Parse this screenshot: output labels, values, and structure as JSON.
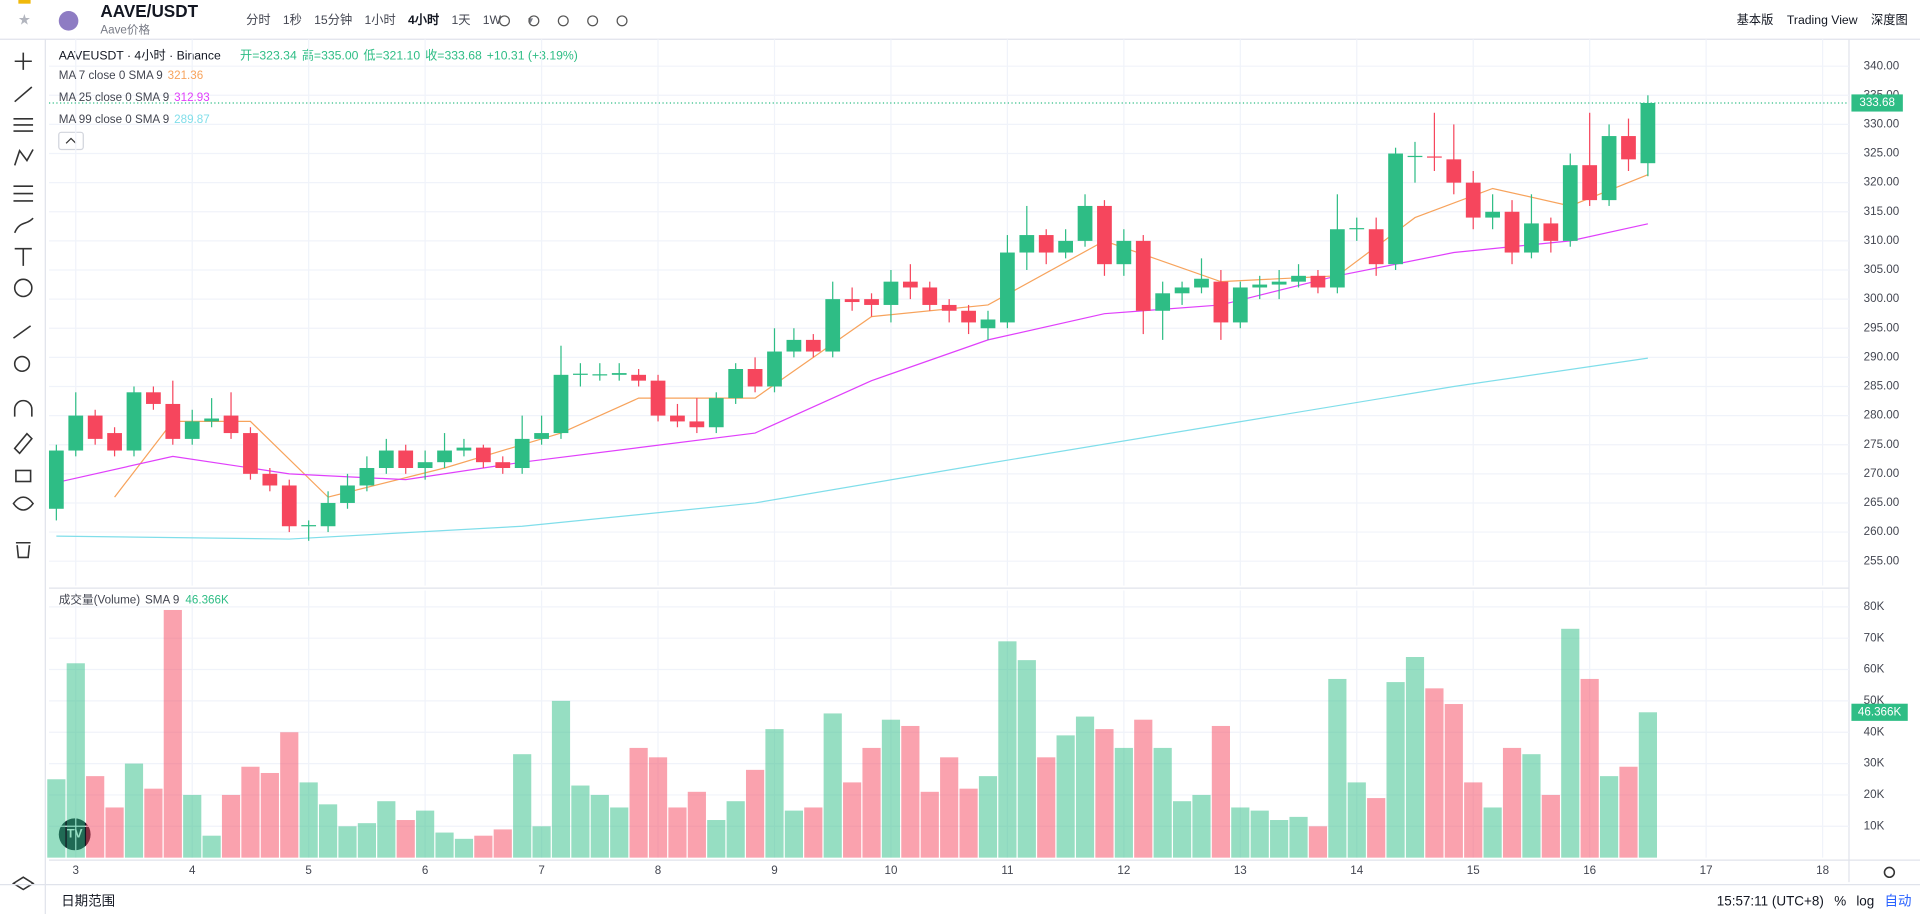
{
  "toolbar": {
    "symbol": "AAVE/USDT",
    "subtitle": "Aave价格",
    "intervals": [
      "分时",
      "1秒",
      "15分钟",
      "1小时",
      "4小时",
      "1天",
      "1W"
    ],
    "active_interval": 4,
    "views": [
      "基本版",
      "Trading View",
      "深度图"
    ]
  },
  "footer": {
    "range": "日期范围",
    "time": "15:57:11 (UTC+8)",
    "options": [
      "%",
      "log",
      "自动"
    ]
  },
  "chart_data": {
    "type": "candlestick",
    "legend": {
      "name": "AAVEUSDT · 4小时 · Binance",
      "ohlc": [
        "开=323.34",
        "高=335.00",
        "低=321.10",
        "收=333.68",
        "+10.31 (+3.19%)"
      ]
    },
    "up_color": "#2ebd85",
    "down_color": "#f6465d",
    "xlim": [
      -0.38,
      92.36
    ],
    "xticks": [
      {
        "value": 1,
        "label": "3"
      },
      {
        "value": 7,
        "label": "4"
      },
      {
        "value": 13,
        "label": "5"
      },
      {
        "value": 19,
        "label": "6"
      },
      {
        "value": 25,
        "label": "7"
      },
      {
        "value": 31,
        "label": "8"
      },
      {
        "value": 37,
        "label": "9"
      },
      {
        "value": 43,
        "label": "10"
      },
      {
        "value": 49,
        "label": "11"
      },
      {
        "value": 55,
        "label": "12"
      },
      {
        "value": 61,
        "label": "13"
      },
      {
        "value": 67,
        "label": "14"
      },
      {
        "value": 73,
        "label": "15"
      },
      {
        "value": 79,
        "label": "16"
      },
      {
        "value": 85,
        "label": "17"
      },
      {
        "value": 91,
        "label": "18"
      }
    ],
    "ylim": [
      250.8,
      344
    ],
    "yticks": [
      {
        "value": 255,
        "label": "255.00"
      },
      {
        "value": 260,
        "label": "260.00"
      },
      {
        "value": 265,
        "label": "265.00"
      },
      {
        "value": 270,
        "label": "270.00"
      },
      {
        "value": 275,
        "label": "275.00"
      },
      {
        "value": 280,
        "label": "280.00"
      },
      {
        "value": 285,
        "label": "285.00"
      },
      {
        "value": 290,
        "label": "290.00"
      },
      {
        "value": 295,
        "label": "295.00"
      },
      {
        "value": 300,
        "label": "300.00"
      },
      {
        "value": 305,
        "label": "305.00"
      },
      {
        "value": 310,
        "label": "310.00"
      },
      {
        "value": 315,
        "label": "315.00"
      },
      {
        "value": 320,
        "label": "320.00"
      },
      {
        "value": 325,
        "label": "325.00"
      },
      {
        "value": 330,
        "label": "330.00"
      },
      {
        "value": 335,
        "label": "335.00"
      },
      {
        "value": 340,
        "label": "340.00"
      }
    ],
    "grid": true,
    "open": [
      264,
      274,
      280,
      277,
      274,
      284,
      282,
      276,
      279,
      280,
      277,
      270,
      268,
      261,
      261,
      265,
      268,
      271,
      274,
      271,
      272,
      274,
      274.5,
      272,
      271,
      276,
      277,
      287,
      287,
      287,
      287,
      286,
      280,
      279,
      278,
      283,
      288,
      285,
      291,
      293,
      291,
      300,
      300,
      299,
      303,
      302,
      299,
      298,
      295,
      296,
      308,
      311,
      308,
      310,
      316,
      306,
      310,
      298,
      301,
      302,
      303,
      296,
      302,
      302.5,
      303,
      304,
      302,
      312,
      312,
      306,
      324.5,
      324.5,
      324,
      320,
      314,
      315,
      308,
      313,
      310,
      323,
      317,
      328,
      323.34
    ],
    "high": [
      275,
      284,
      281,
      278,
      285,
      285,
      286,
      281,
      283,
      284,
      278,
      271,
      269,
      262,
      267,
      270,
      273,
      276,
      275,
      274,
      277,
      276,
      275,
      273,
      280,
      280,
      292,
      289,
      289,
      289,
      288,
      287,
      282,
      283,
      284,
      289,
      290,
      295,
      295,
      294,
      303,
      302,
      301,
      305,
      306,
      303,
      300,
      299,
      298,
      311,
      316,
      312,
      312,
      318,
      317,
      312,
      311,
      303,
      303,
      307,
      305,
      303,
      304,
      305,
      306,
      305,
      318,
      314,
      314,
      326,
      327,
      332,
      330,
      322,
      318,
      317,
      318,
      314,
      325,
      332,
      330,
      331,
      335
    ],
    "low": [
      262,
      273,
      275,
      273,
      273,
      281,
      275,
      275,
      278,
      276,
      269,
      267,
      260,
      258.5,
      260,
      264,
      267,
      270,
      270,
      269,
      271,
      273,
      271,
      270,
      270,
      275,
      276,
      285,
      286,
      286,
      285,
      279,
      278,
      277,
      277,
      282,
      284,
      284,
      290,
      290,
      290,
      298,
      297,
      296,
      300,
      298,
      296,
      294,
      293,
      295,
      305,
      306,
      307,
      309,
      304,
      304,
      294,
      293,
      299,
      301,
      293,
      295,
      300,
      300,
      302,
      301,
      301,
      310,
      304,
      305,
      320,
      322,
      318,
      312,
      312,
      306,
      307,
      308,
      309,
      316,
      316,
      322,
      321.1
    ],
    "close": [
      274,
      280,
      276,
      274,
      284,
      282,
      276,
      279,
      279.5,
      277,
      270,
      268,
      261,
      261.2,
      265,
      268,
      271,
      274,
      271,
      272,
      274,
      274.5,
      272,
      271,
      276,
      277,
      287,
      287.2,
      287.1,
      287.3,
      286,
      280,
      279,
      278,
      283,
      288,
      285,
      291,
      293,
      291,
      300,
      299.5,
      299,
      303,
      302,
      299,
      298,
      296,
      296.5,
      308,
      311,
      308,
      310,
      316,
      306,
      310,
      298,
      301,
      302,
      303.5,
      296,
      302,
      302.5,
      303,
      304,
      302,
      312,
      312.2,
      306,
      325,
      324.6,
      324.4,
      320,
      314,
      315,
      308,
      313,
      310,
      323,
      317,
      328,
      324,
      333.68
    ],
    "ma": [
      {
        "name": "MA 7 close 0 SMA 9",
        "value": 321.36,
        "color": "#f7a35c",
        "x": [
          3,
          6,
          10,
          14,
          20,
          26,
          30,
          36,
          42,
          48,
          54,
          60,
          66,
          70,
          74,
          78,
          82
        ],
        "values": [
          266,
          279,
          279,
          266,
          271,
          277,
          283,
          283,
          297,
          299,
          310,
          303,
          304,
          314,
          319,
          316,
          321.36
        ]
      },
      {
        "name": "MA 25 close 0 SMA 9",
        "value": 312.93,
        "color": "#e040fb",
        "x": [
          0,
          6,
          12,
          18,
          24,
          30,
          36,
          42,
          48,
          54,
          60,
          66,
          72,
          78,
          82
        ],
        "values": [
          268.5,
          273,
          270,
          269,
          272,
          274.5,
          277,
          286,
          293,
          297.5,
          299,
          304,
          308,
          310,
          312.93
        ]
      },
      {
        "name": "MA 99 close 0 SMA 9",
        "value": 289.87,
        "color": "#80deea",
        "x": [
          0,
          12,
          24,
          36,
          48,
          60,
          72,
          82
        ],
        "values": [
          259.3,
          258.8,
          261,
          265,
          271.8,
          278.4,
          285,
          289.87
        ]
      }
    ],
    "volume": {
      "name": "成交量(Volume)",
      "sma": "SMA 9",
      "ylim": [
        0,
        85200
      ],
      "yticks": [
        {
          "value": 10000,
          "label": "10K"
        },
        {
          "value": 20000,
          "label": "20K"
        },
        {
          "value": 30000,
          "label": "30K"
        },
        {
          "value": 40000,
          "label": "40K"
        },
        {
          "value": 50000,
          "label": "50K"
        },
        {
          "value": 60000,
          "label": "60K"
        },
        {
          "value": 70000,
          "label": "70K"
        },
        {
          "value": 80000,
          "label": "80K"
        }
      ],
      "values": [
        25000,
        62000,
        26000,
        16000,
        30000,
        22000,
        79000,
        20000,
        7000,
        20000,
        29000,
        27000,
        40000,
        24000,
        17000,
        10000,
        11000,
        18000,
        12000,
        15000,
        8000,
        6000,
        7000,
        9000,
        33000,
        10000,
        50000,
        23000,
        20000,
        16000,
        35000,
        32000,
        16000,
        21000,
        12000,
        18000,
        28000,
        41000,
        15000,
        16000,
        46000,
        24000,
        35000,
        44000,
        42000,
        21000,
        32000,
        22000,
        26000,
        69000,
        63000,
        32000,
        39000,
        45000,
        41000,
        35000,
        44000,
        35000,
        18000,
        20000,
        42000,
        16000,
        15000,
        12000,
        13000,
        10000,
        57000,
        24000,
        19000,
        56000,
        64000,
        54000,
        49000,
        24000,
        16000,
        35000,
        33000,
        20000,
        73000,
        57000,
        26000,
        29000,
        46366
      ],
      "last_label": "46.366K"
    }
  }
}
